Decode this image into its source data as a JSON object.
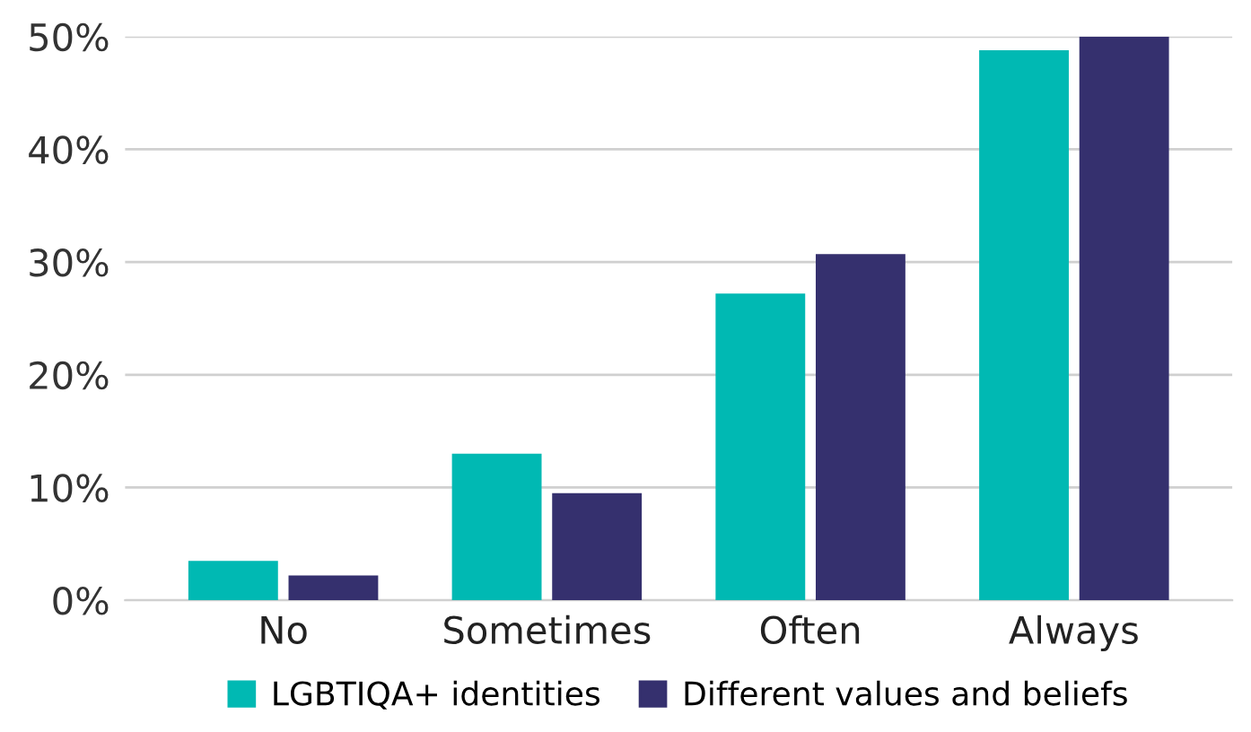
{
  "chart_data": {
    "type": "bar",
    "categories": [
      "No",
      "Sometimes",
      "Often",
      "Always"
    ],
    "series": [
      {
        "name": "LGBTIQA+ identities",
        "color": "#00b9b3",
        "values": [
          3.5,
          13.0,
          27.2,
          48.8
        ]
      },
      {
        "name": "Different values and beliefs",
        "color": "#35306e",
        "values": [
          2.2,
          9.5,
          30.7,
          50
        ]
      }
    ],
    "ylim": [
      0,
      50
    ],
    "yticks": [
      {
        "value": 0,
        "label": "0%"
      },
      {
        "value": 10,
        "label": "10%"
      },
      {
        "value": 20,
        "label": "20%"
      },
      {
        "value": 30,
        "label": "30%"
      },
      {
        "value": 40,
        "label": "40%"
      },
      {
        "value": 50,
        "label": "50%"
      }
    ],
    "grid": "y",
    "legend": "bottom"
  }
}
